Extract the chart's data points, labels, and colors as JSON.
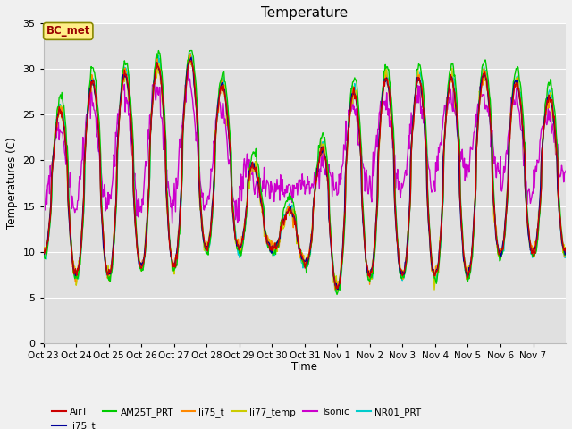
{
  "title": "Temperature",
  "ylabel": "Temperatures (C)",
  "xlabel": "Time",
  "annotation": "BC_met",
  "ylim": [
    0,
    35
  ],
  "yticks": [
    0,
    5,
    10,
    15,
    20,
    25,
    30,
    35
  ],
  "legend_entries": [
    {
      "label": "AirT",
      "color": "#cc0000"
    },
    {
      "label": "li75_t",
      "color": "#000099"
    },
    {
      "label": "AM25T_PRT",
      "color": "#00cc00"
    },
    {
      "label": "li75_t",
      "color": "#ff8800"
    },
    {
      "label": "li77_temp",
      "color": "#cccc00"
    },
    {
      "label": "Tsonic",
      "color": "#cc00cc"
    },
    {
      "label": "NR01_PRT",
      "color": "#00cccc"
    }
  ],
  "x_tick_labels": [
    "Oct 23",
    "Oct 24",
    "Oct 25",
    "Oct 26",
    "Oct 27",
    "Oct 28",
    "Oct 29",
    "Oct 30",
    "Oct 31",
    "Nov 1",
    "Nov 2",
    "Nov 3",
    "Nov 4",
    "Nov 5",
    "Nov 6",
    "Nov 7"
  ],
  "figsize": [
    6.4,
    4.8
  ],
  "dpi": 100,
  "fig_bg": "#f0f0f0",
  "plot_bg": "#e0e0e0",
  "grid_color": "#ffffff",
  "annotation_text_color": "#990000",
  "annotation_bg": "#ffee88",
  "annotation_edge": "#888800"
}
